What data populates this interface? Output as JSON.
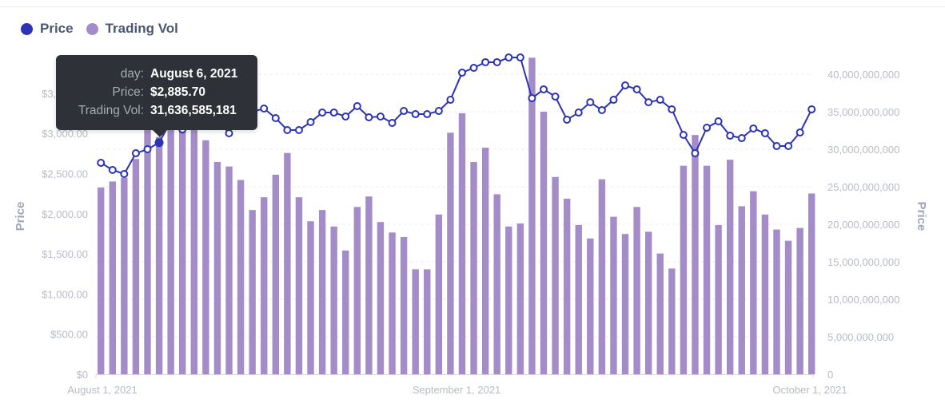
{
  "legend": {
    "items": [
      {
        "label": "Price",
        "color": "#2c34b5"
      },
      {
        "label": "Trading Vol",
        "color": "#a48cc8"
      }
    ]
  },
  "tooltip": {
    "rows": [
      {
        "key": "day:",
        "value": "August 6, 2021"
      },
      {
        "key": "Price:",
        "value": "$2,885.70"
      },
      {
        "key": "Trading Vol:",
        "value": "31,636,585,181"
      }
    ],
    "highlight_index": 5
  },
  "colors": {
    "price_line": "#2c34b5",
    "volume_bar": "#a48cc8",
    "grid": "#ececf2",
    "axis": "#d6d8de",
    "tooltip_bg": "#2e3238"
  },
  "chart_data": {
    "type": "bar+line",
    "title": "",
    "xlabel": "",
    "ylabel_left": "Price",
    "ylabel_right": "Price",
    "x_ticks": [
      "August 1, 2021",
      "September 1, 2021",
      "October 1, 2021"
    ],
    "y_left_ticks": [
      "$0",
      "$500.00",
      "$1,000.00",
      "$1,500.00",
      "$2,000.00",
      "$2,500.00",
      "$3,000.00",
      "$3,500.00"
    ],
    "y_left_range": [
      0,
      4000
    ],
    "y_right_ticks": [
      "0",
      "5,000,000,000",
      "10,000,000,000",
      "15,000,000,000",
      "20,000,000,000",
      "25,000,000,000",
      "30,000,000,000",
      "35,000,000,000",
      "40,000,000,000"
    ],
    "y_right_range": [
      0,
      40000000000
    ],
    "grid": true,
    "legend_position": "top-left",
    "start_date": "2021-08-01",
    "end_date": "2021-10-01",
    "series": [
      {
        "name": "Price",
        "type": "line",
        "axis": "left",
        "values": [
          2634,
          2545,
          2495,
          2753,
          2803,
          2885.7,
          3150,
          3050,
          3160,
          3140,
          3170,
          3002,
          3320,
          3270,
          3310,
          3191,
          3042,
          3042,
          3141,
          3260,
          3260,
          3211,
          3340,
          3201,
          3211,
          3131,
          3280,
          3240,
          3240,
          3280,
          3419,
          3757,
          3817,
          3887,
          3887,
          3946,
          3946,
          3439,
          3549,
          3459,
          3171,
          3260,
          3389,
          3290,
          3419,
          3598,
          3549,
          3389,
          3419,
          3300,
          2982,
          2753,
          3071,
          3151,
          2972,
          2942,
          3062,
          3002,
          2843,
          2843,
          3012,
          3300
        ]
      },
      {
        "name": "Trading Vol",
        "type": "bar",
        "axis": "right",
        "values": [
          24900000000,
          25700000000,
          26200000000,
          28700000000,
          33500000000,
          31636585181,
          36500000000,
          35800000000,
          34200000000,
          31200000000,
          28300000000,
          27700000000,
          25900000000,
          21900000000,
          23600000000,
          26600000000,
          29500000000,
          23600000000,
          20400000000,
          21900000000,
          19700000000,
          16500000000,
          22300000000,
          23700000000,
          20300000000,
          18900000000,
          18300000000,
          14000000000,
          14000000000,
          21300000000,
          32200000000,
          34800000000,
          28300000000,
          30200000000,
          24000000000,
          19700000000,
          20100000000,
          42200000000,
          35000000000,
          26300000000,
          23400000000,
          19900000000,
          18100000000,
          26000000000,
          21000000000,
          18700000000,
          22300000000,
          19000000000,
          16100000000,
          14100000000,
          27800000000,
          31900000000,
          27800000000,
          19900000000,
          28600000000,
          22400000000,
          24400000000,
          21300000000,
          19300000000,
          17800000000,
          19500000000,
          24100000000
        ]
      }
    ]
  }
}
